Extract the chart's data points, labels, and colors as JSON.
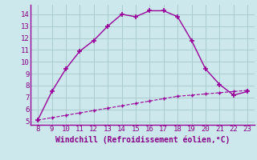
{
  "x": [
    8,
    9,
    10,
    11,
    12,
    13,
    14,
    15,
    16,
    17,
    18,
    19,
    20,
    21,
    22,
    23
  ],
  "y_main": [
    5.1,
    7.5,
    9.4,
    10.9,
    11.8,
    13.0,
    14.0,
    13.8,
    14.3,
    14.3,
    13.8,
    11.8,
    9.4,
    8.1,
    7.2,
    7.5
  ],
  "y_ref": [
    5.1,
    5.3,
    5.5,
    5.7,
    5.9,
    6.1,
    6.3,
    6.5,
    6.7,
    6.9,
    7.1,
    7.2,
    7.3,
    7.4,
    7.5,
    7.6
  ],
  "line_color": "#990099",
  "bg_color": "#cce8ec",
  "grid_color": "#aacccc",
  "tick_label_color": "#880088",
  "xlabel": "Windchill (Refroidissement éolien,°C)",
  "xlim": [
    7.5,
    23.5
  ],
  "ylim": [
    4.7,
    14.8
  ],
  "xticks": [
    8,
    9,
    10,
    11,
    12,
    13,
    14,
    15,
    16,
    17,
    18,
    19,
    20,
    21,
    22,
    23
  ],
  "yticks": [
    5,
    6,
    7,
    8,
    9,
    10,
    11,
    12,
    13,
    14
  ]
}
